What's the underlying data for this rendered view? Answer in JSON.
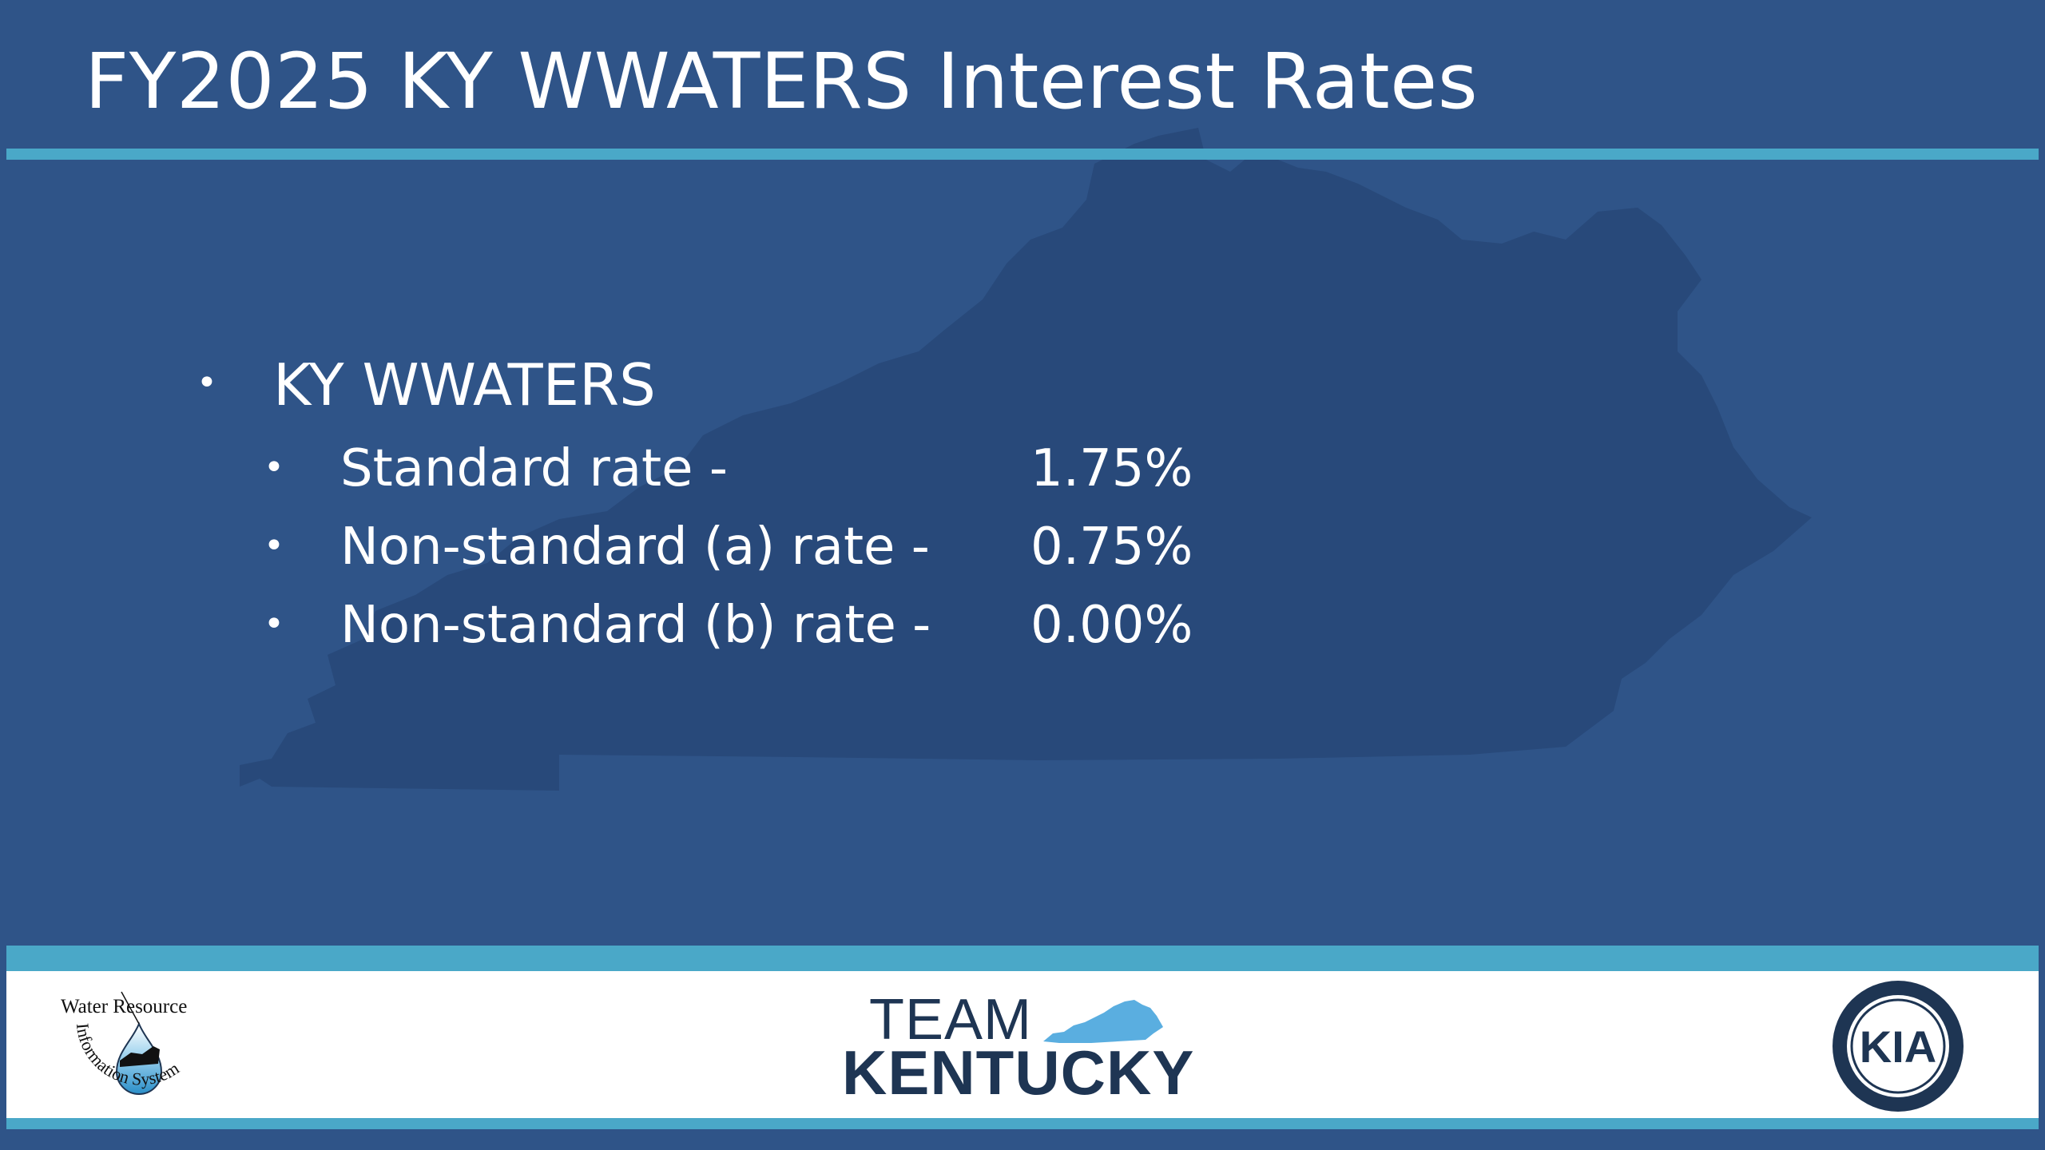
{
  "slide": {
    "title": "FY2025 KY WWATERS Interest Rates",
    "bullet_glyph": "•",
    "list": {
      "heading": "KY WWATERS",
      "items": [
        {
          "label": "Standard rate -",
          "value": "1.75%"
        },
        {
          "label": "Non-standard (a) rate -",
          "value": "0.75%"
        },
        {
          "label": "Non-standard (b) rate -",
          "value": "0.00%"
        }
      ]
    }
  },
  "footer": {
    "left_logo": {
      "top_text": "Water Resource",
      "arc_text": "Information System"
    },
    "center_logo": {
      "line1": "TEAM",
      "line2": "KENTUCKY"
    },
    "right_logo": {
      "initials": "KIA"
    }
  },
  "colors": {
    "background": "#2f5488",
    "map_silhouette": "#28497a",
    "accent_rule": "#4aa8c8",
    "text": "#ffffff",
    "footer_background": "#ffffff",
    "logo_navy": "#1e3553",
    "logo_light_blue": "#5aaee0"
  }
}
